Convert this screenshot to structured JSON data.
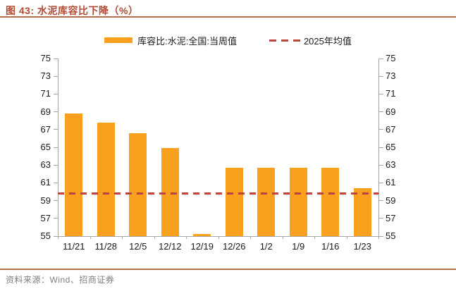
{
  "title": "图 43: 水泥库容比下降（%）",
  "legend": {
    "bar_label": "库容比:水泥:全国:当周值",
    "line_label": "2025年均值"
  },
  "chart_data": {
    "type": "bar",
    "title": "水泥库容比下降（%）",
    "categories": [
      "11/21",
      "11/28",
      "12/5",
      "12/12",
      "12/19",
      "12/26",
      "1/2",
      "1/9",
      "1/16",
      "1/23"
    ],
    "series": [
      {
        "name": "库容比:水泥:全国:当周值",
        "type": "bar",
        "color": "#F9A11D",
        "values": [
          68.8,
          67.8,
          66.6,
          64.9,
          55.2,
          62.7,
          62.7,
          62.7,
          62.7,
          60.4
        ]
      },
      {
        "name": "2025年均值",
        "type": "constant-line",
        "style": "dashed",
        "color": "#BE453C",
        "value": 59.8
      }
    ],
    "ylim": [
      55,
      75
    ],
    "ytick_step": 2,
    "y_axis_sides": "both",
    "grid": false,
    "legend_position": "top"
  },
  "footer": {
    "source": "资料来源：Wind、招商证券"
  },
  "colors": {
    "title": "#B04B35",
    "rule": "#B5714F",
    "bar": "#F9A11D",
    "dash_line": "#BE453C",
    "axis": "#A6A6A6",
    "axis_text": "#1A1A1A",
    "source_text": "#7F7F7F"
  }
}
